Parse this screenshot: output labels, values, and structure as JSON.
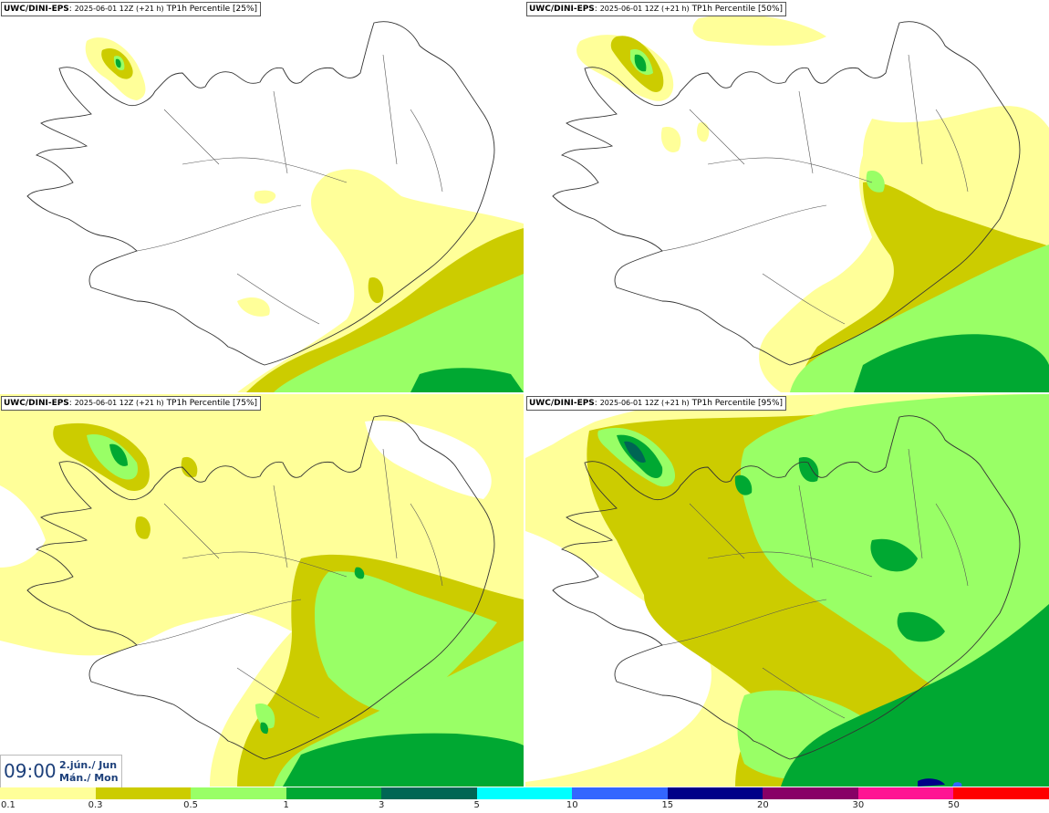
{
  "panels": [
    {
      "model": "UWC/DINI-EPS",
      "run": "2025-06-01 12Z (+21 h)",
      "field": "TP1h Percentile [25%]",
      "percentile": 25
    },
    {
      "model": "UWC/DINI-EPS",
      "run": "2025-06-01 12Z (+21 h)",
      "field": "TP1h Percentile [50%]",
      "percentile": 50
    },
    {
      "model": "UWC/DINI-EPS",
      "run": "2025-06-01 12Z (+21 h)",
      "field": "TP1h Percentile [75%]",
      "percentile": 75
    },
    {
      "model": "UWC/DINI-EPS",
      "run": "2025-06-01 12Z (+21 h)",
      "field": "TP1h Percentile [95%]",
      "percentile": 95
    }
  ],
  "time": {
    "hour": "09:00",
    "date_line1": "2.jún./ Jun",
    "date_line2": "Mán./ Mon"
  },
  "legend": {
    "bins": [
      {
        "label": "0.1",
        "color": "#ffff99"
      },
      {
        "label": "0.3",
        "color": "#cccc00"
      },
      {
        "label": "0.5",
        "color": "#99ff66"
      },
      {
        "label": "1",
        "color": "#00a832"
      },
      {
        "label": "3",
        "color": "#006654"
      },
      {
        "label": "5",
        "color": "#00ffff"
      },
      {
        "label": "10",
        "color": "#3366ff"
      },
      {
        "label": "15",
        "color": "#000088"
      },
      {
        "label": "20",
        "color": "#880066"
      },
      {
        "label": "30",
        "color": "#ff1493"
      },
      {
        "label": "50",
        "color": "#ff0000"
      }
    ]
  },
  "colors": {
    "light_yellow": "#ffff99",
    "olive": "#cccc00",
    "light_green": "#99ff66",
    "green": "#00a832",
    "dark_green": "#006654",
    "coast": "#333333"
  }
}
